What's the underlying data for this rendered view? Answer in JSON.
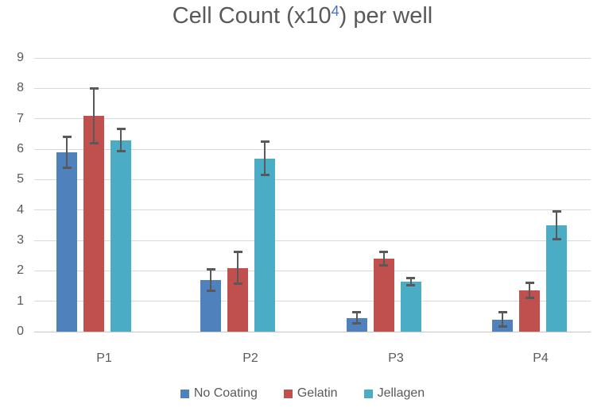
{
  "chart_data": {
    "type": "bar",
    "title": {
      "prefix": "Cell Count (x10",
      "superscript": "4",
      "suffix": ") per well",
      "full_text": "Cell Count (x10⁴) per well"
    },
    "categories": [
      "P1",
      "P2",
      "P3",
      "P4"
    ],
    "series": [
      {
        "name": "No Coating",
        "color": "#4F81BD",
        "values": [
          5.9,
          1.7,
          0.45,
          0.4
        ],
        "errors": [
          0.5,
          0.35,
          0.18,
          0.23
        ]
      },
      {
        "name": "Gelatin",
        "color": "#C0504D",
        "values": [
          7.1,
          2.1,
          2.4,
          1.35
        ],
        "errors": [
          0.9,
          0.52,
          0.22,
          0.25
        ]
      },
      {
        "name": "Jellagen",
        "color": "#4BACC6",
        "values": [
          6.3,
          5.7,
          1.65,
          3.5
        ],
        "errors": [
          0.37,
          0.55,
          0.12,
          0.45
        ]
      }
    ],
    "y_axis": {
      "min": 0,
      "max": 9,
      "tick_step": 1,
      "tick_labels": [
        "0",
        "1",
        "2",
        "3",
        "4",
        "5",
        "6",
        "7",
        "8",
        "9"
      ]
    },
    "x_axis": {
      "label": ""
    },
    "grid": true,
    "error_bars": true,
    "legend_position": "bottom",
    "colors": {
      "grid": "#D9D9D9",
      "axis_line": "#C6C6C6",
      "text": "#595959",
      "error_bar": "#595959",
      "title_text": "#595959",
      "title_superscript": "#4472C4"
    }
  }
}
